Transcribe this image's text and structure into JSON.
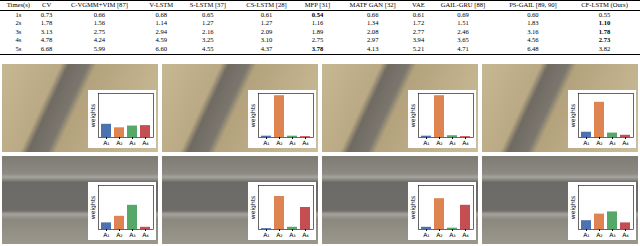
{
  "table": {
    "header": [
      "Times(s)",
      "CV",
      "C-VGMM+VIM [87]",
      "V-LSTM",
      "S-LSTM [37]",
      "CS-LSTM [28]",
      "MFP [31]",
      "MATF GAN [32]",
      "VAE",
      "GAIL-GRU [88]",
      "PS-GAIL [89, 90]",
      "CF-LSTM (Ours)"
    ],
    "rows": [
      {
        "cells": [
          "1s",
          "0.73",
          "0.66",
          "0.68",
          "0.65",
          "0.61",
          "0.54",
          "0.66",
          "0.61",
          "0.69",
          "0.60",
          "0.55"
        ],
        "bold": "MFP [31]"
      },
      {
        "cells": [
          "2s",
          "1.78",
          "1.56",
          "1.14",
          "1.27",
          "1.27",
          "1.16",
          "1.34",
          "1.72",
          "1.51",
          "1.83",
          "1.10"
        ],
        "bold": "CF-LSTM (Ours)"
      },
      {
        "cells": [
          "3s",
          "3.13",
          "2.75",
          "2.94",
          "2.16",
          "2.09",
          "1.89",
          "2.08",
          "2.77",
          "2.46",
          "3.16",
          "1.78"
        ],
        "bold": "CF-LSTM (Ours)"
      },
      {
        "cells": [
          "4s",
          "4.78",
          "4.24",
          "4.59",
          "3.25",
          "3.10",
          "2.75",
          "2.97",
          "3.94",
          "3.65",
          "4.56",
          "2.73"
        ],
        "bold": "CF-LSTM (Ours)"
      },
      {
        "cells": [
          "5s",
          "6.68",
          "5.99",
          "6.60",
          "4.55",
          "4.37",
          "3.78",
          "4.13",
          "5.21",
          "4.71",
          "6.48",
          "3.82"
        ],
        "bold": "MFP [31]"
      }
    ]
  },
  "chart_data": [
    {
      "type": "bar",
      "y_label": "weights",
      "categories": [
        "A₁",
        "A₂",
        "A₃",
        "A₄"
      ],
      "values": [
        0.3,
        0.22,
        0.26,
        0.27
      ],
      "colors": [
        "#4c72b0",
        "#dd8452",
        "#55a868",
        "#c44e52"
      ],
      "ylim": [
        0,
        1
      ],
      "tick_labels": "x"
    },
    {
      "type": "bar",
      "y_label": "weights",
      "categories": [
        "A₁",
        "A₂",
        "A₃",
        "A₄"
      ],
      "values": [
        0.03,
        0.95,
        0.03,
        0.02
      ],
      "colors": [
        "#4c72b0",
        "#dd8452",
        "#55a868",
        "#c44e52"
      ],
      "ylim": [
        0,
        1
      ],
      "tick_labels": "x"
    },
    {
      "type": "bar",
      "y_label": "weights",
      "categories": [
        "A₁",
        "A₂",
        "A₃",
        "A₄"
      ],
      "values": [
        0.03,
        0.95,
        0.04,
        0.02
      ],
      "colors": [
        "#4c72b0",
        "#dd8452",
        "#55a868",
        "#c44e52"
      ],
      "ylim": [
        0,
        1
      ],
      "tick_labels": "x"
    },
    {
      "type": "bar",
      "y_label": "weights",
      "categories": [
        "A₁",
        "A₂",
        "A₃",
        "A₄"
      ],
      "values": [
        0.12,
        0.8,
        0.1,
        0.05
      ],
      "colors": [
        "#4c72b0",
        "#dd8452",
        "#55a868",
        "#c44e52"
      ],
      "ylim": [
        0,
        1
      ],
      "tick_labels": "x"
    },
    {
      "type": "bar",
      "y_label": "weights",
      "categories": [
        "A₁",
        "A₂",
        "A₃",
        "A₄"
      ],
      "values": [
        0.15,
        0.3,
        0.55,
        0.05
      ],
      "colors": [
        "#4c72b0",
        "#dd8452",
        "#55a868",
        "#c44e52"
      ],
      "ylim": [
        0,
        1
      ],
      "tick_labels": "x"
    },
    {
      "type": "bar",
      "y_label": "weights",
      "categories": [
        "A₁",
        "A₂",
        "A₃",
        "A₄"
      ],
      "values": [
        0.02,
        0.75,
        0.05,
        0.5
      ],
      "colors": [
        "#4c72b0",
        "#dd8452",
        "#55a868",
        "#c44e52"
      ],
      "ylim": [
        0,
        1
      ],
      "tick_labels": "x"
    },
    {
      "type": "bar",
      "y_label": "weights",
      "categories": [
        "A₁",
        "A₂",
        "A₃",
        "A₄"
      ],
      "values": [
        0.05,
        0.7,
        0.03,
        0.55
      ],
      "colors": [
        "#4c72b0",
        "#dd8452",
        "#55a868",
        "#c44e52"
      ],
      "ylim": [
        0,
        1
      ],
      "tick_labels": "x"
    },
    {
      "type": "bar",
      "y_label": "weights",
      "categories": [
        "A₁",
        "A₂",
        "A₃",
        "A₄"
      ],
      "values": [
        0.2,
        0.35,
        0.4,
        0.15
      ],
      "colors": [
        "#4c72b0",
        "#dd8452",
        "#55a868",
        "#c44e52"
      ],
      "ylim": [
        0,
        1
      ],
      "tick_labels": "x"
    }
  ]
}
